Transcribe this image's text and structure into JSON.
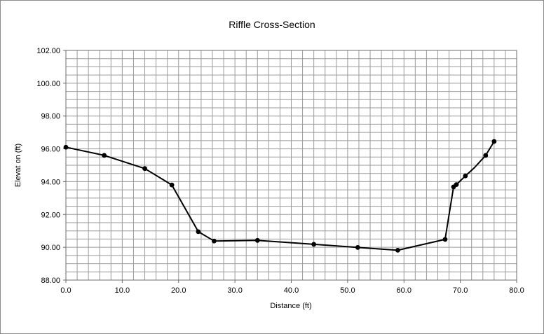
{
  "chart_data": {
    "type": "scatter",
    "title": "Riffle Cross-Section",
    "xlabel": "Distance (ft)",
    "ylabel": "Elevat on (ft)",
    "xlim": [
      0,
      80
    ],
    "ylim": [
      88,
      102
    ],
    "x_ticks": [
      "0.0",
      "10.0",
      "20.0",
      "30.0",
      "40.0",
      "50.0",
      "60.0",
      "70.0",
      "80.0"
    ],
    "y_ticks": [
      "88.00",
      "90.00",
      "92.00",
      "94.00",
      "96.00",
      "98.00",
      "100.00",
      "102.00"
    ],
    "grid": true,
    "legend": "none",
    "series": [
      {
        "color": "#000000",
        "points": [
          {
            "x": 0.0,
            "y": 96.1
          },
          {
            "x": 6.8,
            "y": 95.6
          },
          {
            "x": 14.0,
            "y": 94.8
          },
          {
            "x": 18.8,
            "y": 93.8
          },
          {
            "x": 23.5,
            "y": 90.95
          },
          {
            "x": 26.3,
            "y": 90.38
          },
          {
            "x": 34.0,
            "y": 90.42
          },
          {
            "x": 44.0,
            "y": 90.18
          },
          {
            "x": 51.8,
            "y": 89.99
          },
          {
            "x": 58.9,
            "y": 89.82
          },
          {
            "x": 67.3,
            "y": 90.48
          },
          {
            "x": 68.8,
            "y": 93.68
          },
          {
            "x": 69.3,
            "y": 93.82
          },
          {
            "x": 70.9,
            "y": 94.35
          },
          {
            "x": 72.5,
            "y": 94.85,
            "marker": false
          },
          {
            "x": 74.5,
            "y": 95.6
          },
          {
            "x": 76.0,
            "y": 96.45
          }
        ]
      }
    ]
  }
}
